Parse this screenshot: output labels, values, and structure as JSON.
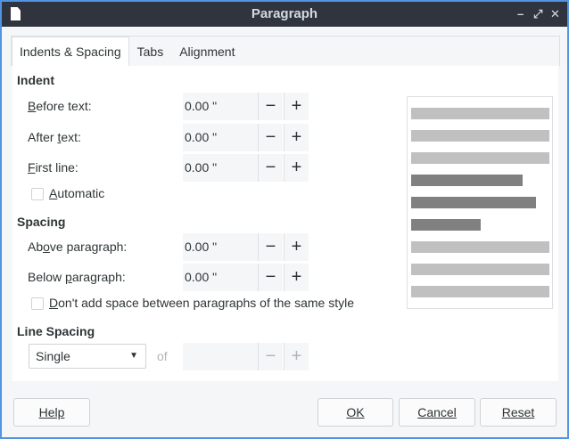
{
  "window": {
    "title": "Paragraph",
    "minimize": "–",
    "maximize": "⤢",
    "close": "✕"
  },
  "tabs": [
    {
      "label": "Indents & Spacing"
    },
    {
      "label": "Tabs"
    },
    {
      "label": "Alignment"
    }
  ],
  "indent": {
    "heading": "Indent",
    "before": {
      "mn": "B",
      "rest": "efore text:",
      "value": "0.00 \""
    },
    "after": {
      "pre": "After ",
      "mn": "t",
      "rest": "ext:",
      "value": "0.00 \""
    },
    "first": {
      "mn": "F",
      "rest": "irst line:",
      "value": "0.00 \""
    },
    "automatic": {
      "mn": "A",
      "rest": "utomatic",
      "checked": false
    }
  },
  "spacing": {
    "heading": "Spacing",
    "above": {
      "pre": "Ab",
      "mn": "o",
      "rest": "ve paragraph:",
      "value": "0.00 \""
    },
    "below": {
      "pre": "Below ",
      "mn": "p",
      "rest": "aragraph:",
      "value": "0.00 \""
    },
    "dont_add": {
      "mn": "D",
      "rest": "on't add space between paragraphs of the same style",
      "checked": false
    }
  },
  "line_spacing": {
    "heading": "Line Spacing",
    "selected": "Single",
    "of": "of",
    "value": ""
  },
  "spin": {
    "minus": "−",
    "plus": "+"
  },
  "buttons": {
    "help": "Help",
    "ok": "OK",
    "cancel": "Cancel",
    "reset": "Reset"
  },
  "colors": {
    "border": "#5294e2",
    "titlebar": "#2f343f",
    "preview_light": "#c0c0c0",
    "preview_dark": "#808080"
  }
}
